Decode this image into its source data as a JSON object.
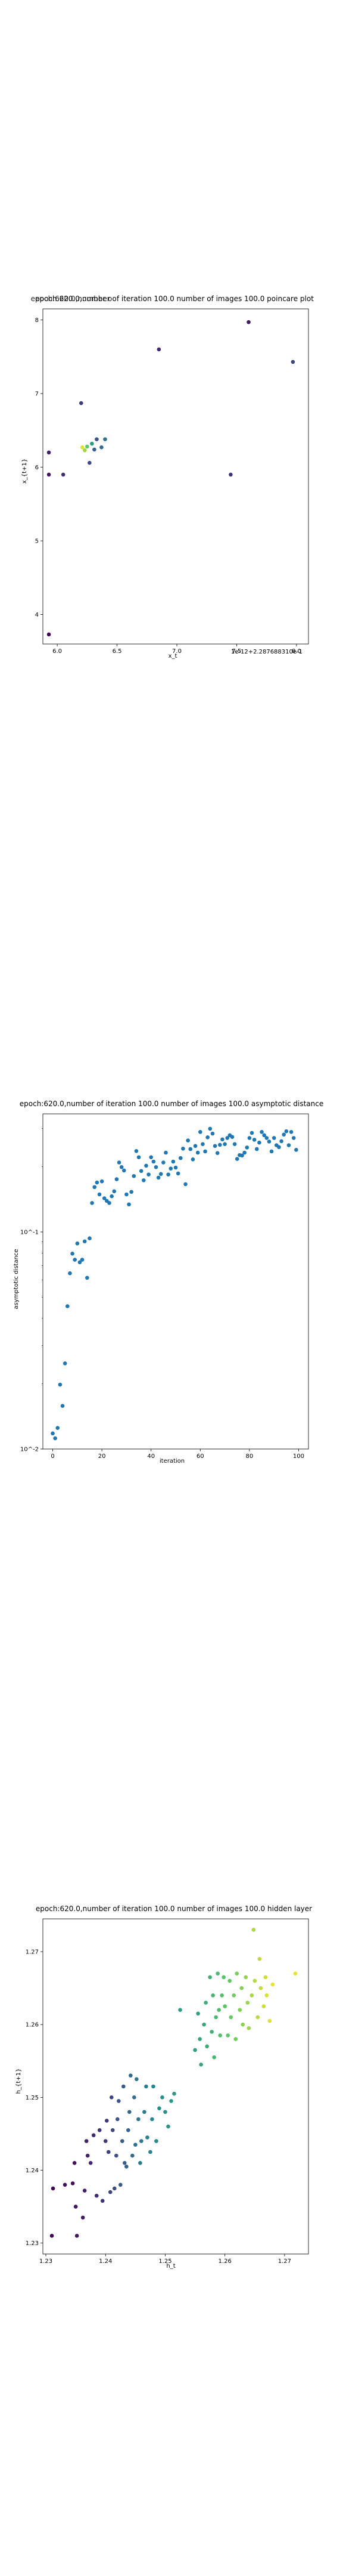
{
  "chart_data": [
    {
      "type": "scatter",
      "title": "epoch:620.0,number of iteration 100.0 number of images 100.0 poincare plot",
      "overlay_text": "epoch:620.0,number o",
      "xlabel": "x_t",
      "ylabel": "x_{t+1}",
      "x_offset_label": "1e-12+2.287688310e-1",
      "xlim": [
        5.88,
        8.1
      ],
      "ylim": [
        3.6,
        8.15
      ],
      "xticks": [
        {
          "v": 6.0,
          "label": "6.0"
        },
        {
          "v": 6.5,
          "label": "6.5"
        },
        {
          "v": 7.0,
          "label": "7.0"
        },
        {
          "v": 7.5,
          "label": "7.5"
        },
        {
          "v": 8.0,
          "label": "8.0"
        }
      ],
      "yticks": [
        {
          "v": 4,
          "label": "4"
        },
        {
          "v": 5,
          "label": "5"
        },
        {
          "v": 6,
          "label": "6"
        },
        {
          "v": 7,
          "label": "7"
        },
        {
          "v": 8,
          "label": "8"
        }
      ],
      "points": [
        {
          "x": 5.93,
          "y": 3.73,
          "c": 0.02
        },
        {
          "x": 5.93,
          "y": 5.9,
          "c": 0.06
        },
        {
          "x": 5.93,
          "y": 6.2,
          "c": 0.1
        },
        {
          "x": 6.05,
          "y": 5.9,
          "c": 0.14
        },
        {
          "x": 6.2,
          "y": 6.87,
          "c": 0.18
        },
        {
          "x": 6.21,
          "y": 6.27,
          "c": 0.95
        },
        {
          "x": 6.23,
          "y": 6.23,
          "c": 0.85
        },
        {
          "x": 6.25,
          "y": 6.28,
          "c": 0.75
        },
        {
          "x": 6.27,
          "y": 6.06,
          "c": 0.22
        },
        {
          "x": 6.29,
          "y": 6.32,
          "c": 0.55
        },
        {
          "x": 6.31,
          "y": 6.24,
          "c": 0.3
        },
        {
          "x": 6.33,
          "y": 6.38,
          "c": 0.26
        },
        {
          "x": 6.37,
          "y": 6.27,
          "c": 0.34
        },
        {
          "x": 6.4,
          "y": 6.38,
          "c": 0.38
        },
        {
          "x": 6.85,
          "y": 7.6,
          "c": 0.12
        },
        {
          "x": 7.45,
          "y": 5.9,
          "c": 0.16
        },
        {
          "x": 7.6,
          "y": 7.97,
          "c": 0.08
        },
        {
          "x": 7.97,
          "y": 7.43,
          "c": 0.2
        }
      ]
    },
    {
      "type": "scatter",
      "title": "epoch:620.0,number of iteration 100.0  number of images 100.0 asymptotic distance",
      "xlabel": "iteration",
      "ylabel": "asymptotic distance",
      "yscale": "log",
      "xlim": [
        -4,
        104
      ],
      "ylim": [
        0.01,
        0.35
      ],
      "color": "#1f77b4",
      "xticks": [
        {
          "v": 0,
          "label": "0"
        },
        {
          "v": 20,
          "label": "20"
        },
        {
          "v": 40,
          "label": "40"
        },
        {
          "v": 60,
          "label": "60"
        },
        {
          "v": 80,
          "label": "80"
        },
        {
          "v": 100,
          "label": "100"
        }
      ],
      "yticks": [
        {
          "v": 0.01,
          "label": "10^-2"
        },
        {
          "v": 0.1,
          "label": "10^-1"
        }
      ],
      "x": [
        0,
        1,
        2,
        3,
        4,
        5,
        6,
        7,
        8,
        9,
        10,
        11,
        12,
        13,
        14,
        15,
        16,
        17,
        18,
        19,
        20,
        21,
        22,
        23,
        24,
        25,
        26,
        27,
        28,
        29,
        30,
        31,
        32,
        33,
        34,
        35,
        36,
        37,
        38,
        39,
        40,
        41,
        42,
        43,
        44,
        45,
        46,
        47,
        48,
        49,
        50,
        51,
        52,
        53,
        54,
        55,
        56,
        57,
        58,
        59,
        60,
        61,
        62,
        63,
        64,
        65,
        66,
        67,
        68,
        69,
        70,
        71,
        72,
        73,
        74,
        75,
        76,
        77,
        78,
        79,
        80,
        81,
        82,
        83,
        84,
        85,
        86,
        87,
        88,
        89,
        90,
        91,
        92,
        93,
        94,
        95,
        96,
        97,
        98,
        99
      ],
      "y": [
        0.0118,
        0.0112,
        0.0125,
        0.0198,
        0.0158,
        0.0248,
        0.0455,
        0.0645,
        0.0795,
        0.0745,
        0.0885,
        0.0725,
        0.0745,
        0.0905,
        0.0615,
        0.0935,
        0.136,
        0.161,
        0.169,
        0.149,
        0.171,
        0.143,
        0.139,
        0.136,
        0.146,
        0.154,
        0.175,
        0.209,
        0.199,
        0.192,
        0.149,
        0.134,
        0.153,
        0.181,
        0.236,
        0.221,
        0.191,
        0.173,
        0.202,
        0.184,
        0.221,
        0.211,
        0.199,
        0.178,
        0.185,
        0.209,
        0.232,
        0.184,
        0.196,
        0.211,
        0.198,
        0.186,
        0.219,
        0.242,
        0.166,
        0.264,
        0.241,
        0.216,
        0.249,
        0.232,
        0.289,
        0.254,
        0.235,
        0.273,
        0.299,
        0.284,
        0.249,
        0.231,
        0.252,
        0.267,
        0.254,
        0.271,
        0.279,
        0.274,
        0.254,
        0.217,
        0.226,
        0.225,
        0.232,
        0.245,
        0.271,
        0.286,
        0.266,
        0.241,
        0.258,
        0.289,
        0.279,
        0.271,
        0.261,
        0.235,
        0.271,
        0.251,
        0.246,
        0.262,
        0.281,
        0.291,
        0.251,
        0.289,
        0.271,
        0.239
      ]
    },
    {
      "type": "scatter",
      "title": "epoch:620.0,number of iteration 100.0  number of images 100.0 hidden layer",
      "xlabel": "h_t",
      "ylabel": "h_{t+1}",
      "xlim": [
        1.2295,
        1.274
      ],
      "ylim": [
        1.2285,
        1.2745
      ],
      "xticks": [
        {
          "v": 1.23,
          "label": "1.23"
        },
        {
          "v": 1.24,
          "label": "1.24"
        },
        {
          "v": 1.25,
          "label": "1.25"
        },
        {
          "v": 1.26,
          "label": "1.26"
        },
        {
          "v": 1.27,
          "label": "1.27"
        }
      ],
      "yticks": [
        {
          "v": 1.23,
          "label": "1.23"
        },
        {
          "v": 1.24,
          "label": "1.24"
        },
        {
          "v": 1.25,
          "label": "1.25"
        },
        {
          "v": 1.26,
          "label": "1.26"
        },
        {
          "v": 1.27,
          "label": "1.27"
        }
      ],
      "points": [
        {
          "x": 1.231,
          "y": 1.231,
          "c": 0.0
        },
        {
          "x": 1.2312,
          "y": 1.2375,
          "c": 0.02
        },
        {
          "x": 1.2332,
          "y": 1.238,
          "c": 0.03
        },
        {
          "x": 1.2345,
          "y": 1.2382,
          "c": 0.04
        },
        {
          "x": 1.2348,
          "y": 1.241,
          "c": 0.05
        },
        {
          "x": 1.235,
          "y": 1.235,
          "c": 0.06
        },
        {
          "x": 1.2352,
          "y": 1.231,
          "c": 0.07
        },
        {
          "x": 1.2362,
          "y": 1.2335,
          "c": 0.08
        },
        {
          "x": 1.2365,
          "y": 1.2372,
          "c": 0.09
        },
        {
          "x": 1.2368,
          "y": 1.244,
          "c": 0.1
        },
        {
          "x": 1.237,
          "y": 1.242,
          "c": 0.11
        },
        {
          "x": 1.2375,
          "y": 1.241,
          "c": 0.12
        },
        {
          "x": 1.238,
          "y": 1.2448,
          "c": 0.13
        },
        {
          "x": 1.2385,
          "y": 1.2365,
          "c": 0.14
        },
        {
          "x": 1.239,
          "y": 1.2455,
          "c": 0.15
        },
        {
          "x": 1.2395,
          "y": 1.2358,
          "c": 0.16
        },
        {
          "x": 1.24,
          "y": 1.244,
          "c": 0.17
        },
        {
          "x": 1.2402,
          "y": 1.2468,
          "c": 0.18
        },
        {
          "x": 1.2405,
          "y": 1.2425,
          "c": 0.19
        },
        {
          "x": 1.2408,
          "y": 1.237,
          "c": 0.2
        },
        {
          "x": 1.241,
          "y": 1.25,
          "c": 0.21
        },
        {
          "x": 1.2412,
          "y": 1.2455,
          "c": 0.22
        },
        {
          "x": 1.2415,
          "y": 1.2375,
          "c": 0.23
        },
        {
          "x": 1.2418,
          "y": 1.242,
          "c": 0.24
        },
        {
          "x": 1.242,
          "y": 1.247,
          "c": 0.25
        },
        {
          "x": 1.2422,
          "y": 1.2495,
          "c": 0.26
        },
        {
          "x": 1.2425,
          "y": 1.238,
          "c": 0.27
        },
        {
          "x": 1.2428,
          "y": 1.244,
          "c": 0.28
        },
        {
          "x": 1.243,
          "y": 1.2515,
          "c": 0.29
        },
        {
          "x": 1.2432,
          "y": 1.241,
          "c": 0.3
        },
        {
          "x": 1.2435,
          "y": 1.2405,
          "c": 0.31
        },
        {
          "x": 1.2438,
          "y": 1.2455,
          "c": 0.32
        },
        {
          "x": 1.244,
          "y": 1.248,
          "c": 0.33
        },
        {
          "x": 1.2442,
          "y": 1.253,
          "c": 0.34
        },
        {
          "x": 1.2445,
          "y": 1.242,
          "c": 0.35
        },
        {
          "x": 1.2448,
          "y": 1.25,
          "c": 0.36
        },
        {
          "x": 1.245,
          "y": 1.2435,
          "c": 0.37
        },
        {
          "x": 1.2452,
          "y": 1.2525,
          "c": 0.38
        },
        {
          "x": 1.2455,
          "y": 1.247,
          "c": 0.39
        },
        {
          "x": 1.2458,
          "y": 1.241,
          "c": 0.4
        },
        {
          "x": 1.246,
          "y": 1.244,
          "c": 0.41
        },
        {
          "x": 1.2465,
          "y": 1.248,
          "c": 0.42
        },
        {
          "x": 1.2468,
          "y": 1.2515,
          "c": 0.43
        },
        {
          "x": 1.247,
          "y": 1.2445,
          "c": 0.44
        },
        {
          "x": 1.2475,
          "y": 1.2425,
          "c": 0.45
        },
        {
          "x": 1.2478,
          "y": 1.247,
          "c": 0.46
        },
        {
          "x": 1.248,
          "y": 1.2515,
          "c": 0.47
        },
        {
          "x": 1.2485,
          "y": 1.244,
          "c": 0.48
        },
        {
          "x": 1.249,
          "y": 1.2485,
          "c": 0.49
        },
        {
          "x": 1.2495,
          "y": 1.25,
          "c": 0.5
        },
        {
          "x": 1.25,
          "y": 1.248,
          "c": 0.51
        },
        {
          "x": 1.2505,
          "y": 1.246,
          "c": 0.52
        },
        {
          "x": 1.251,
          "y": 1.2495,
          "c": 0.53
        },
        {
          "x": 1.2515,
          "y": 1.2505,
          "c": 0.54
        },
        {
          "x": 1.2525,
          "y": 1.262,
          "c": 0.55
        },
        {
          "x": 1.255,
          "y": 1.2565,
          "c": 0.56
        },
        {
          "x": 1.2555,
          "y": 1.2615,
          "c": 0.57
        },
        {
          "x": 1.2558,
          "y": 1.258,
          "c": 0.58
        },
        {
          "x": 1.256,
          "y": 1.2545,
          "c": 0.59
        },
        {
          "x": 1.2565,
          "y": 1.26,
          "c": 0.6
        },
        {
          "x": 1.2568,
          "y": 1.263,
          "c": 0.61
        },
        {
          "x": 1.257,
          "y": 1.257,
          "c": 0.62
        },
        {
          "x": 1.2575,
          "y": 1.2665,
          "c": 0.63
        },
        {
          "x": 1.2578,
          "y": 1.259,
          "c": 0.64
        },
        {
          "x": 1.258,
          "y": 1.264,
          "c": 0.65
        },
        {
          "x": 1.2582,
          "y": 1.2555,
          "c": 0.66
        },
        {
          "x": 1.2585,
          "y": 1.261,
          "c": 0.67
        },
        {
          "x": 1.2588,
          "y": 1.267,
          "c": 0.68
        },
        {
          "x": 1.259,
          "y": 1.262,
          "c": 0.69
        },
        {
          "x": 1.2592,
          "y": 1.2585,
          "c": 0.7
        },
        {
          "x": 1.2595,
          "y": 1.264,
          "c": 0.71
        },
        {
          "x": 1.2598,
          "y": 1.2665,
          "c": 0.72
        },
        {
          "x": 1.26,
          "y": 1.2625,
          "c": 0.73
        },
        {
          "x": 1.2605,
          "y": 1.2585,
          "c": 0.74
        },
        {
          "x": 1.2608,
          "y": 1.266,
          "c": 0.75
        },
        {
          "x": 1.261,
          "y": 1.261,
          "c": 0.76
        },
        {
          "x": 1.2615,
          "y": 1.264,
          "c": 0.77
        },
        {
          "x": 1.2618,
          "y": 1.258,
          "c": 0.78
        },
        {
          "x": 1.262,
          "y": 1.267,
          "c": 0.79
        },
        {
          "x": 1.2625,
          "y": 1.262,
          "c": 0.8
        },
        {
          "x": 1.2628,
          "y": 1.265,
          "c": 0.81
        },
        {
          "x": 1.263,
          "y": 1.26,
          "c": 0.82
        },
        {
          "x": 1.2635,
          "y": 1.2665,
          "c": 0.83
        },
        {
          "x": 1.2638,
          "y": 1.263,
          "c": 0.84
        },
        {
          "x": 1.264,
          "y": 1.2595,
          "c": 0.85
        },
        {
          "x": 1.2645,
          "y": 1.264,
          "c": 0.86
        },
        {
          "x": 1.2648,
          "y": 1.273,
          "c": 0.87
        },
        {
          "x": 1.265,
          "y": 1.266,
          "c": 0.88
        },
        {
          "x": 1.2655,
          "y": 1.261,
          "c": 0.89
        },
        {
          "x": 1.2658,
          "y": 1.269,
          "c": 0.9
        },
        {
          "x": 1.266,
          "y": 1.265,
          "c": 0.91
        },
        {
          "x": 1.2665,
          "y": 1.2625,
          "c": 0.92
        },
        {
          "x": 1.2668,
          "y": 1.2665,
          "c": 0.93
        },
        {
          "x": 1.267,
          "y": 1.264,
          "c": 0.94
        },
        {
          "x": 1.2675,
          "y": 1.2605,
          "c": 0.95
        },
        {
          "x": 1.268,
          "y": 1.2655,
          "c": 0.96
        },
        {
          "x": 1.2718,
          "y": 1.267,
          "c": 0.97
        }
      ]
    }
  ]
}
